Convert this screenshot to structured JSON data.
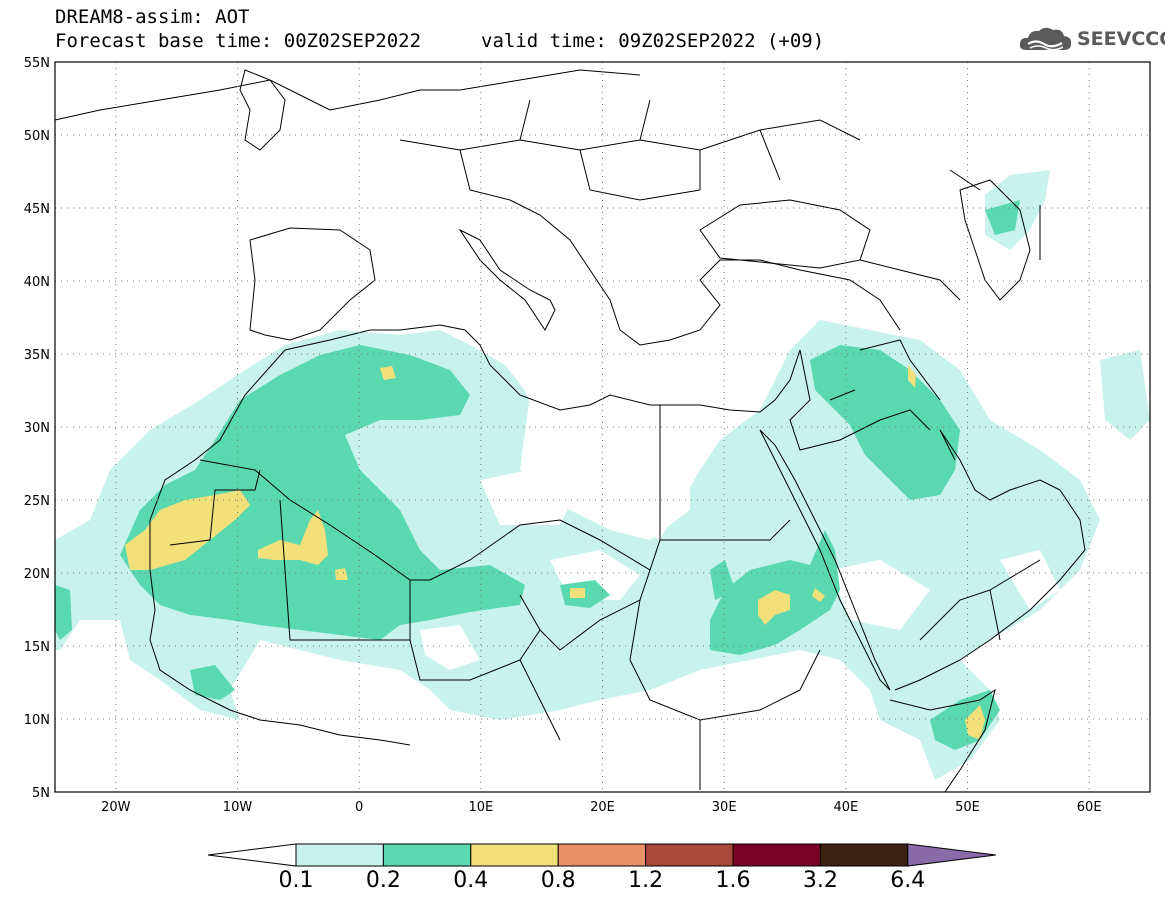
{
  "header": {
    "title_line1": "DREAM8-assim: AOT",
    "title_line2": "Forecast base time: 00Z02SEP2022",
    "valid_time": "valid time: 09Z02SEP2022 (+09)",
    "logo_text": "SEEVCCC",
    "logo_icon": "cloud-icon"
  },
  "map": {
    "lon_range": [
      -25,
      65
    ],
    "lat_range": [
      5,
      55
    ],
    "lat_labels": [
      "55N",
      "50N",
      "45N",
      "40N",
      "35N",
      "30N",
      "25N",
      "20N",
      "15N",
      "10N",
      "5N"
    ],
    "lon_labels": [
      "20W",
      "10W",
      "0",
      "10E",
      "20E",
      "30E",
      "40E",
      "50E",
      "60E"
    ],
    "grid": "dotted"
  },
  "legend": {
    "levels": [
      "0.1",
      "0.2",
      "0.4",
      "0.8",
      "1.2",
      "1.6",
      "3.2",
      "6.4"
    ],
    "colors": [
      "#ffffff",
      "#c8f2ec",
      "#5ad9b0",
      "#f2e07a",
      "#e99068",
      "#a8473a",
      "#7a0025",
      "#3a2114",
      "#8a6aa8"
    ]
  }
}
